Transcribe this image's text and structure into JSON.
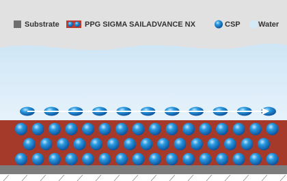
{
  "legend": [
    "Substrate",
    "PPG SIGMA SAILADVANCE NX",
    "CSP",
    "Water"
  ]
}
